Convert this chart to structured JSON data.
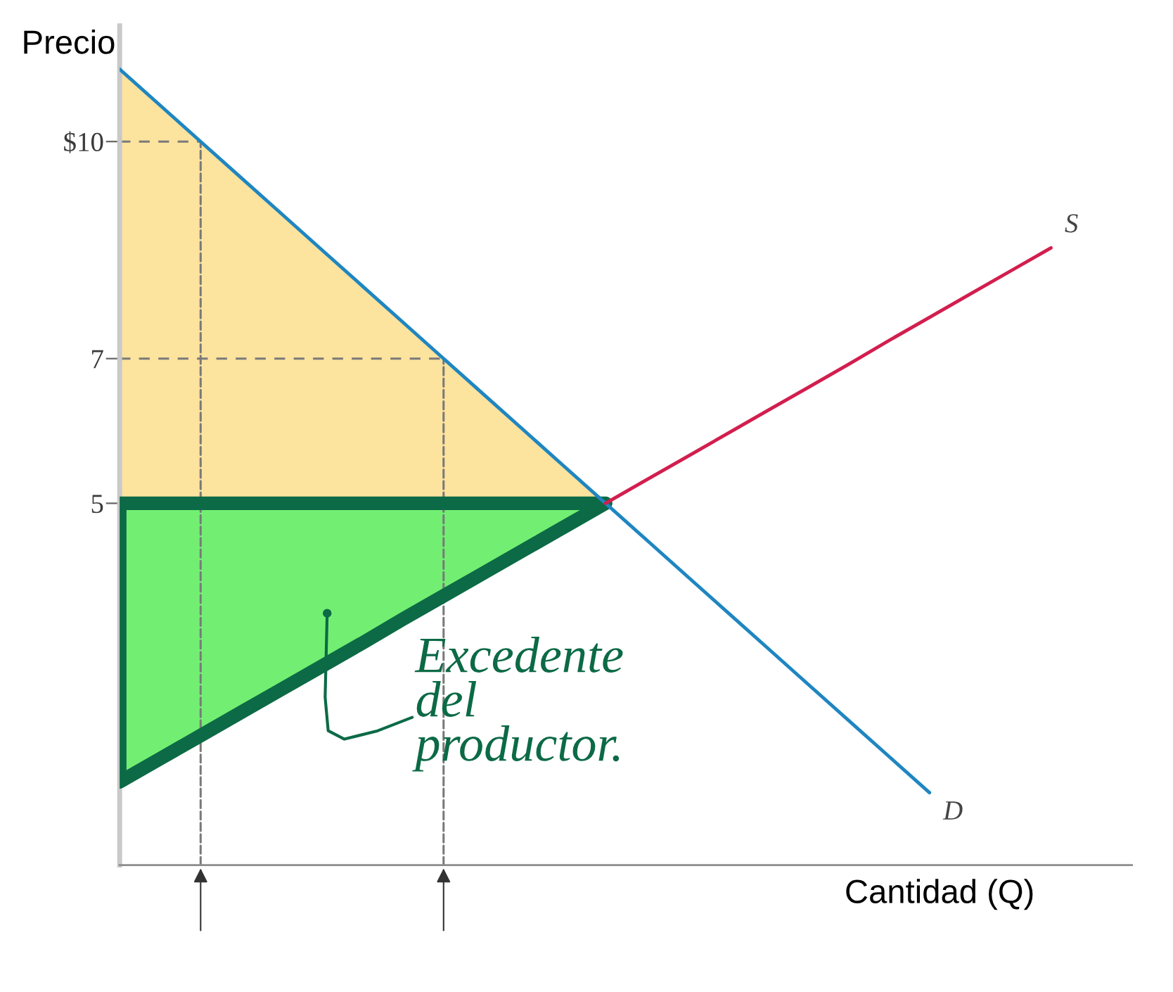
{
  "chart_data": {
    "type": "line",
    "xlabel": "Cantidad (Q)",
    "ylabel": "Precio",
    "categories": [
      null,
      null,
      null,
      null,
      null,
      null,
      null,
      null,
      null,
      null,
      null,
      null,
      null,
      null,
      null,
      null,
      null,
      null,
      null,
      null,
      null,
      null,
      null,
      null,
      null,
      null
    ],
    "ylim": [
      0,
      11.6
    ],
    "yticks": [
      {
        "value": 10,
        "label": "$10"
      },
      7,
      5
    ],
    "tick_labels": "y",
    "annotations": [
      "Excedente\ndel\nproductor."
    ],
    "series": [
      {
        "color": "#fce39e",
        "values": [
          null,
          null,
          null,
          null,
          null,
          null,
          null,
          null,
          null,
          null,
          null,
          null,
          null,
          null,
          null,
          null,
          null,
          null,
          null,
          null,
          null,
          null,
          null,
          null,
          null,
          null
        ],
        "lower": [
          5,
          5,
          5,
          5,
          5,
          5,
          5,
          5,
          5,
          5,
          5,
          5,
          5,
          null,
          null,
          null,
          null,
          null,
          null,
          null,
          null,
          null,
          null,
          null,
          null,
          null
        ],
        "upper": [
          11,
          10.5,
          10,
          9.5,
          9,
          8.5,
          8,
          7.5,
          7,
          6.5,
          6,
          5.5,
          5,
          null,
          null,
          null,
          null,
          null,
          null,
          null,
          null,
          null,
          null,
          null,
          null,
          null
        ]
      },
      {
        "color": "#72ef72",
        "values": [
          null,
          null,
          null,
          null,
          null,
          null,
          null,
          null,
          null,
          null,
          null,
          null,
          null,
          null,
          null,
          null,
          null,
          null,
          null,
          null,
          null,
          null,
          null,
          null,
          null,
          null
        ],
        "lower": [
          1.15,
          1.47,
          1.79,
          2.11,
          2.43,
          2.75,
          3.07,
          3.4,
          3.72,
          4.04,
          4.36,
          4.68,
          5,
          null,
          null,
          null,
          null,
          null,
          null,
          null,
          null,
          null,
          null,
          null,
          null,
          null
        ],
        "upper": [
          5,
          5,
          5,
          5,
          5,
          5,
          5,
          5,
          5,
          5,
          5,
          5,
          5,
          null,
          null,
          null,
          null,
          null,
          null,
          null,
          null,
          null,
          null,
          null,
          null,
          null
        ]
      },
      {
        "color": "#7a7a7a",
        "line_style": "dashed",
        "values": [
          10,
          10,
          10,
          null,
          null,
          null,
          null,
          null,
          null,
          null,
          null,
          null,
          null,
          null,
          null,
          null,
          null,
          null,
          null,
          null,
          null,
          null,
          null,
          null,
          null,
          null
        ]
      },
      {
        "color": "#7a7a7a",
        "line_style": "dashed",
        "values": [
          7,
          7,
          7,
          7,
          7,
          7,
          7,
          7,
          7,
          null,
          null,
          null,
          null,
          null,
          null,
          null,
          null,
          null,
          null,
          null,
          null,
          null,
          null,
          null,
          null,
          null
        ]
      },
      {
        "name": "D",
        "color": "#1f86c1",
        "values": [
          11,
          10.5,
          10,
          9.5,
          9,
          8.5,
          8,
          7.5,
          7,
          6.5,
          6,
          5.5,
          5,
          4.5,
          4,
          3.5,
          3,
          2.5,
          2,
          1.5,
          1,
          null,
          null,
          null,
          null,
          null
        ]
      },
      {
        "name": "S",
        "color": "#d21e4e",
        "values": [
          null,
          null,
          null,
          null,
          null,
          null,
          null,
          null,
          null,
          null,
          null,
          null,
          5,
          5.32,
          5.64,
          5.96,
          6.28,
          6.6,
          6.92,
          7.25,
          7.57,
          7.89,
          8.21,
          8.53,
          null,
          null
        ]
      }
    ]
  }
}
